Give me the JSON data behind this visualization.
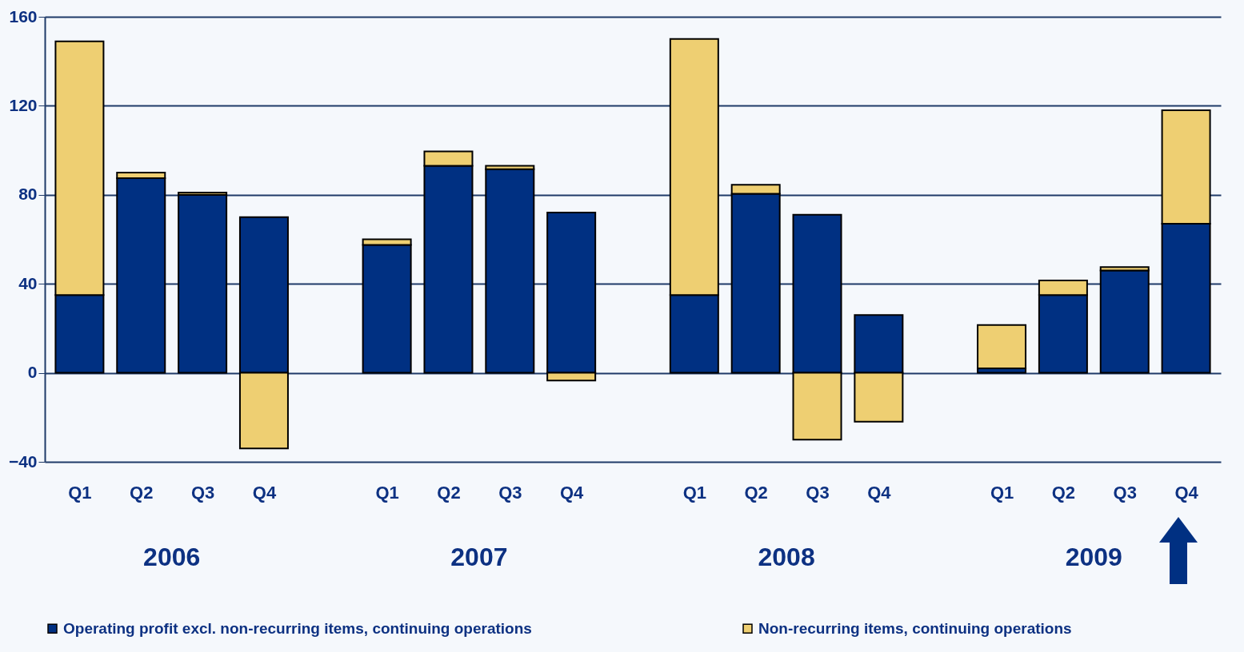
{
  "chart_data": {
    "type": "bar",
    "stacked": true,
    "categories": [
      "Q1",
      "Q2",
      "Q3",
      "Q4",
      null,
      "Q1",
      "Q2",
      "Q3",
      "Q4",
      null,
      "Q1",
      "Q2",
      "Q3",
      "Q4",
      null,
      "Q1",
      "Q2",
      "Q3",
      "Q4"
    ],
    "series": [
      {
        "name": "Operating profit excl. non-recurring items, continuing operations",
        "color": "#003082",
        "values": [
          35,
          87.5,
          80,
          70,
          null,
          57.5,
          93,
          91.5,
          72,
          null,
          35,
          80.5,
          71,
          26,
          null,
          2,
          35,
          46,
          67
        ]
      },
      {
        "name": "Non-recurring items, continuing operations",
        "color": "#eecf72",
        "values": [
          114,
          2.5,
          1,
          -34,
          null,
          2.5,
          6.5,
          1.5,
          -3.5,
          null,
          115,
          4,
          -30,
          -22,
          null,
          19.5,
          6.5,
          1.5,
          51
        ]
      }
    ],
    "annotations": [
      "2006",
      "2007",
      "2008",
      "2009"
    ],
    "ylim": [
      -40,
      160
    ],
    "yticks": [
      -40,
      0,
      40,
      80,
      120,
      160
    ],
    "grid": "y",
    "legend": "bottom"
  }
}
